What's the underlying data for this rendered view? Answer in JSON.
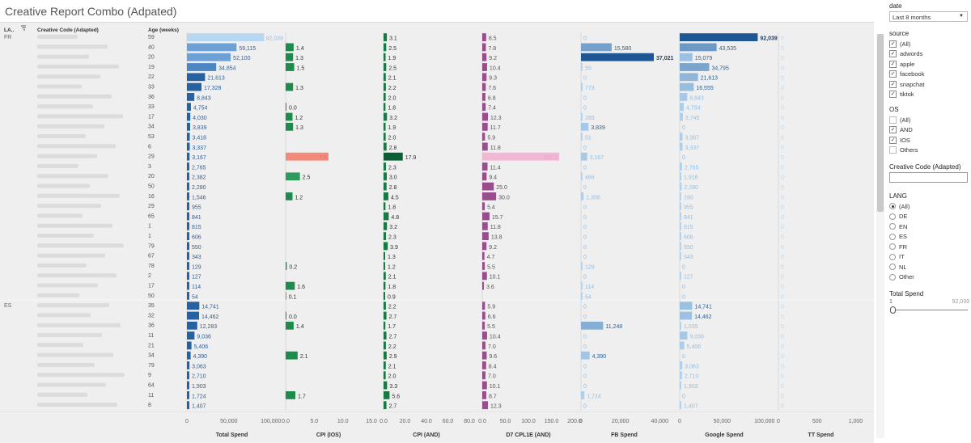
{
  "title": "Creative Report Combo (Adpated)",
  "colors": {
    "spend_gradient_light": "#b8d7f0",
    "spend_gradient_dark": "#1f5694",
    "spend_label": "#2f5f94",
    "cpi_ios": "#1e8a4c",
    "cpi_ios_highlight": "#f48a7a",
    "cpi_and": "#187a41",
    "cpi_and_highlight": "#0b5e34",
    "d7": "#9a4d8c",
    "d7_highlight": "#f2b7d5",
    "fb_light": "#b3d5f0",
    "fb_dark": "#1f5694",
    "google_light": "#b3d5f0",
    "google_dark": "#1f5694",
    "tt_label": "#bcd9f1",
    "muted_label": "#8fc0ea"
  },
  "table": {
    "headers": {
      "lang": "LA..",
      "creative": "Creative Code (Adapted)",
      "age": "Age (weeks)"
    },
    "groups": [
      {
        "lang": "FR",
        "start": 0
      },
      {
        "lang": "ES",
        "start": 27
      }
    ]
  },
  "chart_data": {
    "type": "bar",
    "orientation": "horizontal",
    "rows": [
      {
        "lang": "FR",
        "age": 59,
        "total_spend": 92039,
        "cpi_ios": null,
        "cpi_and": 3.1,
        "d7": 8.5,
        "fb": 0,
        "google": 92039,
        "tt": 0
      },
      {
        "lang": "FR",
        "age": 40,
        "total_spend": 59115,
        "cpi_ios": 1.4,
        "cpi_and": 2.5,
        "d7": 7.8,
        "fb": 15580,
        "google": 43535,
        "tt": 0
      },
      {
        "lang": "FR",
        "age": 20,
        "total_spend": 52100,
        "cpi_ios": 1.3,
        "cpi_and": 1.9,
        "d7": 9.2,
        "fb": 37021,
        "google": 15079,
        "tt": 0
      },
      {
        "lang": "FR",
        "age": 19,
        "total_spend": 34854,
        "cpi_ios": 1.5,
        "cpi_and": 2.5,
        "d7": 10.4,
        "fb": 59,
        "google": 34795,
        "tt": 0
      },
      {
        "lang": "FR",
        "age": 22,
        "total_spend": 21613,
        "cpi_ios": null,
        "cpi_and": 2.1,
        "d7": 9.3,
        "fb": 0,
        "google": 21613,
        "tt": 0
      },
      {
        "lang": "FR",
        "age": 33,
        "total_spend": 17328,
        "cpi_ios": 1.3,
        "cpi_and": 2.2,
        "d7": 7.6,
        "fb": 773,
        "google": 16555,
        "tt": 0
      },
      {
        "lang": "FR",
        "age": 36,
        "total_spend": 8843,
        "cpi_ios": null,
        "cpi_and": 2.0,
        "d7": 6.8,
        "fb": 0,
        "google": 8843,
        "tt": 0
      },
      {
        "lang": "FR",
        "age": 33,
        "total_spend": 4754,
        "cpi_ios": 0.0,
        "cpi_and": 1.8,
        "d7": 7.4,
        "fb": 0,
        "google": 4754,
        "tt": 0
      },
      {
        "lang": "FR",
        "age": 17,
        "total_spend": 4030,
        "cpi_ios": 1.2,
        "cpi_and": 3.2,
        "d7": 12.3,
        "fb": 285,
        "google": 3745,
        "tt": 0
      },
      {
        "lang": "FR",
        "age": 34,
        "total_spend": 3839,
        "cpi_ios": 1.3,
        "cpi_and": 1.9,
        "d7": 11.7,
        "fb": 3839,
        "google": 0,
        "tt": 0
      },
      {
        "lang": "FR",
        "age": 53,
        "total_spend": 3418,
        "cpi_ios": null,
        "cpi_and": 2.0,
        "d7": 5.9,
        "fb": 51,
        "google": 3367,
        "tt": 0
      },
      {
        "lang": "FR",
        "age": 6,
        "total_spend": 3337,
        "cpi_ios": null,
        "cpi_and": 2.8,
        "d7": 11.8,
        "fb": 0,
        "google": 3337,
        "tt": 0
      },
      {
        "lang": "FR",
        "age": 29,
        "total_spend": 3167,
        "cpi_ios": 7.5,
        "cpi_and": 17.9,
        "d7": 166.7,
        "fb": 3167,
        "google": 0,
        "tt": 0
      },
      {
        "lang": "FR",
        "age": 3,
        "total_spend": 2765,
        "cpi_ios": null,
        "cpi_and": 2.3,
        "d7": 11.4,
        "fb": 0,
        "google": 2765,
        "tt": 0
      },
      {
        "lang": "FR",
        "age": 20,
        "total_spend": 2382,
        "cpi_ios": 2.5,
        "cpi_and": 3.0,
        "d7": 9.4,
        "fb": 466,
        "google": 1916,
        "tt": 0
      },
      {
        "lang": "FR",
        "age": 50,
        "total_spend": 2280,
        "cpi_ios": null,
        "cpi_and": 2.8,
        "d7": 25.0,
        "fb": 0,
        "google": 2280,
        "tt": 0
      },
      {
        "lang": "FR",
        "age": 16,
        "total_spend": 1546,
        "cpi_ios": 1.2,
        "cpi_and": 4.5,
        "d7": 30.0,
        "fb": 1356,
        "google": 190,
        "tt": 0
      },
      {
        "lang": "FR",
        "age": 29,
        "total_spend": 955,
        "cpi_ios": null,
        "cpi_and": 1.8,
        "d7": 5.4,
        "fb": 0,
        "google": 955,
        "tt": 0
      },
      {
        "lang": "FR",
        "age": 65,
        "total_spend": 841,
        "cpi_ios": null,
        "cpi_and": 4.8,
        "d7": 15.7,
        "fb": 0,
        "google": 841,
        "tt": 0
      },
      {
        "lang": "FR",
        "age": 1,
        "total_spend": 815,
        "cpi_ios": null,
        "cpi_and": 3.2,
        "d7": 11.8,
        "fb": 0,
        "google": 815,
        "tt": 0
      },
      {
        "lang": "FR",
        "age": 1,
        "total_spend": 606,
        "cpi_ios": null,
        "cpi_and": 2.3,
        "d7": 13.8,
        "fb": 0,
        "google": 606,
        "tt": 0
      },
      {
        "lang": "FR",
        "age": 79,
        "total_spend": 550,
        "cpi_ios": null,
        "cpi_and": 3.9,
        "d7": 9.2,
        "fb": 0,
        "google": 550,
        "tt": 0
      },
      {
        "lang": "FR",
        "age": 67,
        "total_spend": 343,
        "cpi_ios": null,
        "cpi_and": 1.3,
        "d7": 4.7,
        "fb": 0,
        "google": 343,
        "tt": 0
      },
      {
        "lang": "FR",
        "age": 78,
        "total_spend": 129,
        "cpi_ios": 0.2,
        "cpi_and": 1.2,
        "d7": 5.5,
        "fb": 129,
        "google": 0,
        "tt": 0
      },
      {
        "lang": "FR",
        "age": 2,
        "total_spend": 127,
        "cpi_ios": null,
        "cpi_and": 2.1,
        "d7": 10.1,
        "fb": 0,
        "google": 127,
        "tt": 0
      },
      {
        "lang": "FR",
        "age": 17,
        "total_spend": 114,
        "cpi_ios": 1.6,
        "cpi_and": 1.8,
        "d7": 3.6,
        "fb": 114,
        "google": 0,
        "tt": 0
      },
      {
        "lang": "FR",
        "age": 50,
        "total_spend": 54,
        "cpi_ios": 0.1,
        "cpi_and": 0.9,
        "d7": null,
        "fb": 54,
        "google": 0,
        "tt": 0
      },
      {
        "lang": "ES",
        "age": 35,
        "total_spend": 14741,
        "cpi_ios": null,
        "cpi_and": 2.2,
        "d7": 5.9,
        "fb": 0,
        "google": 14741,
        "tt": 0
      },
      {
        "lang": "ES",
        "age": 32,
        "total_spend": 14462,
        "cpi_ios": 0.0,
        "cpi_and": 2.7,
        "d7": 6.6,
        "fb": 0,
        "google": 14462,
        "tt": 0
      },
      {
        "lang": "ES",
        "age": 36,
        "total_spend": 12283,
        "cpi_ios": 1.4,
        "cpi_and": 1.7,
        "d7": 5.5,
        "fb": 11248,
        "google": 1035,
        "tt": 0
      },
      {
        "lang": "ES",
        "age": 11,
        "total_spend": 9036,
        "cpi_ios": null,
        "cpi_and": 2.7,
        "d7": 10.4,
        "fb": 0,
        "google": 9036,
        "tt": 0
      },
      {
        "lang": "ES",
        "age": 21,
        "total_spend": 5406,
        "cpi_ios": null,
        "cpi_and": 2.2,
        "d7": 7.0,
        "fb": 0,
        "google": 5406,
        "tt": 0
      },
      {
        "lang": "ES",
        "age": 34,
        "total_spend": 4390,
        "cpi_ios": 2.1,
        "cpi_and": 2.9,
        "d7": 9.6,
        "fb": 4390,
        "google": 0,
        "tt": 0
      },
      {
        "lang": "ES",
        "age": 79,
        "total_spend": 3063,
        "cpi_ios": null,
        "cpi_and": 2.1,
        "d7": 8.4,
        "fb": 0,
        "google": 3063,
        "tt": 0
      },
      {
        "lang": "ES",
        "age": 9,
        "total_spend": 2710,
        "cpi_ios": null,
        "cpi_and": 2.0,
        "d7": 7.0,
        "fb": 0,
        "google": 2710,
        "tt": 0
      },
      {
        "lang": "ES",
        "age": 64,
        "total_spend": 1903,
        "cpi_ios": null,
        "cpi_and": 3.3,
        "d7": 10.1,
        "fb": 0,
        "google": 1903,
        "tt": 0
      },
      {
        "lang": "ES",
        "age": 11,
        "total_spend": 1724,
        "cpi_ios": 1.7,
        "cpi_and": 5.6,
        "d7": 8.7,
        "fb": 1724,
        "google": 0,
        "tt": 0
      },
      {
        "lang": "ES",
        "age": 8,
        "total_spend": 1407,
        "cpi_ios": null,
        "cpi_and": 2.7,
        "d7": 12.3,
        "fb": 0,
        "google": 1407,
        "tt": 0
      }
    ],
    "panels": [
      {
        "key": "total_spend",
        "title": "Total Spend",
        "ticks": [
          "0",
          "50,000",
          "100,000"
        ],
        "tick_values": [
          0,
          50000,
          100000
        ],
        "max": 107000
      },
      {
        "key": "cpi_ios",
        "title": "CPI (IOS)",
        "ticks": [
          "0.0",
          "5.0",
          "10.0",
          "15.0"
        ],
        "tick_values": [
          0,
          5,
          10,
          15
        ],
        "max": 15
      },
      {
        "key": "cpi_and",
        "title": "CPI (AND)",
        "ticks": [
          "0.0",
          "20.0",
          "40.0",
          "60.0",
          "80.0"
        ],
        "tick_values": [
          0,
          20,
          40,
          60,
          80
        ],
        "max": 80
      },
      {
        "key": "d7",
        "title": "D7 CPL1E (AND)",
        "ticks": [
          "0.0",
          "50.0",
          "100.0",
          "150.0",
          "200.0"
        ],
        "tick_values": [
          0,
          50,
          100,
          150,
          200
        ],
        "max": 200
      },
      {
        "key": "fb",
        "title": "FB Spend",
        "ticks": [
          "0",
          "20,000",
          "40,000"
        ],
        "tick_values": [
          0,
          20000,
          40000
        ],
        "max": 44000
      },
      {
        "key": "google",
        "title": "Google Spend",
        "ticks": [
          "0",
          "50,000",
          "100,000"
        ],
        "tick_values": [
          0,
          50000,
          100000
        ],
        "max": 105000
      },
      {
        "key": "tt",
        "title": "TT Spend",
        "ticks": [
          "0",
          "500",
          "1,000"
        ],
        "tick_values": [
          0,
          500,
          1000
        ],
        "max": 1100
      }
    ]
  },
  "filters": {
    "date": {
      "title": "date",
      "value": "Last 8 months"
    },
    "source": {
      "title": "source",
      "options": [
        {
          "label": "(All)",
          "checked": true
        },
        {
          "label": "adwords",
          "checked": true
        },
        {
          "label": "apple",
          "checked": true
        },
        {
          "label": "facebook",
          "checked": true
        },
        {
          "label": "snapchat",
          "checked": true
        },
        {
          "label": "tiktok",
          "checked": true
        }
      ]
    },
    "os": {
      "title": "OS",
      "options": [
        {
          "label": "(All)",
          "checked": false
        },
        {
          "label": "AND",
          "checked": true
        },
        {
          "label": "IOS",
          "checked": true
        },
        {
          "label": "Others",
          "checked": false
        }
      ]
    },
    "creative_code": {
      "title": "Creative Code (Adapted)",
      "value": ""
    },
    "lang": {
      "title": "LANG",
      "options": [
        {
          "label": "(All)",
          "selected": true
        },
        {
          "label": "DE",
          "selected": false
        },
        {
          "label": "EN",
          "selected": false
        },
        {
          "label": "ES",
          "selected": false
        },
        {
          "label": "FR",
          "selected": false
        },
        {
          "label": "IT",
          "selected": false
        },
        {
          "label": "NL",
          "selected": false
        },
        {
          "label": "Other",
          "selected": false
        }
      ]
    },
    "total_spend": {
      "title": "Total Spend",
      "min_label": "1",
      "max_label": "92,039"
    }
  }
}
